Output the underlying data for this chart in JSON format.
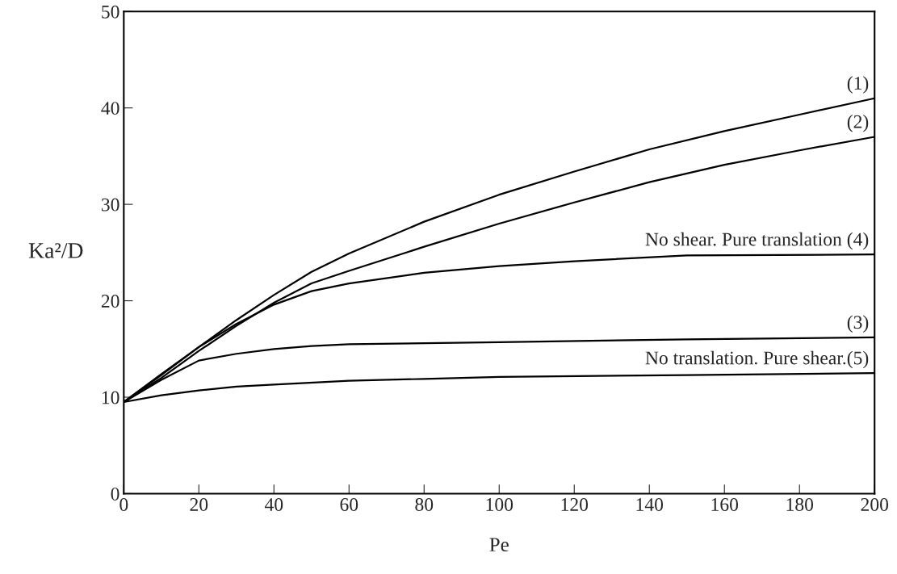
{
  "chart_data": {
    "type": "line",
    "xlabel": "Pe",
    "ylabel": "Ka²/D",
    "xlim": [
      0,
      200
    ],
    "ylim": [
      0,
      50
    ],
    "xticks": [
      0,
      20,
      40,
      60,
      80,
      100,
      120,
      140,
      160,
      180,
      200
    ],
    "yticks": [
      0,
      10,
      20,
      30,
      40,
      50
    ],
    "grid": false,
    "marker": "none",
    "line_style": "solid",
    "series": [
      {
        "name": "(1)",
        "color": "#000000",
        "x": [
          0,
          10,
          20,
          30,
          40,
          50,
          60,
          80,
          100,
          120,
          140,
          160,
          180,
          200
        ],
        "values": [
          9.5,
          12.3,
          15.2,
          18.0,
          20.6,
          23.0,
          24.9,
          28.2,
          31.0,
          33.4,
          35.7,
          37.6,
          39.3,
          41.0
        ]
      },
      {
        "name": "(2)",
        "color": "#000000",
        "x": [
          0,
          10,
          20,
          30,
          40,
          50,
          60,
          80,
          100,
          120,
          140,
          160,
          180,
          200
        ],
        "values": [
          9.5,
          12.0,
          14.8,
          17.4,
          19.8,
          21.8,
          23.1,
          25.6,
          28.0,
          30.2,
          32.3,
          34.1,
          35.6,
          37.0
        ]
      },
      {
        "name": "No shear. Pure translation (4)",
        "color": "#000000",
        "x": [
          0,
          10,
          20,
          30,
          40,
          50,
          60,
          80,
          100,
          120,
          150,
          200
        ],
        "values": [
          9.5,
          12.4,
          15.2,
          17.6,
          19.6,
          21.0,
          21.8,
          22.9,
          23.6,
          24.1,
          24.7,
          24.8
        ]
      },
      {
        "name": "(3)",
        "color": "#000000",
        "x": [
          0,
          10,
          20,
          30,
          40,
          50,
          60,
          100,
          150,
          200
        ],
        "values": [
          9.5,
          11.8,
          13.8,
          14.5,
          15.0,
          15.3,
          15.5,
          15.7,
          16.0,
          16.2
        ]
      },
      {
        "name": "No translation. Pure shear.(5)",
        "color": "#000000",
        "x": [
          0,
          10,
          20,
          30,
          40,
          60,
          80,
          100,
          150,
          200
        ],
        "values": [
          9.5,
          10.2,
          10.7,
          11.1,
          11.3,
          11.7,
          11.9,
          12.1,
          12.3,
          12.5
        ]
      }
    ]
  }
}
